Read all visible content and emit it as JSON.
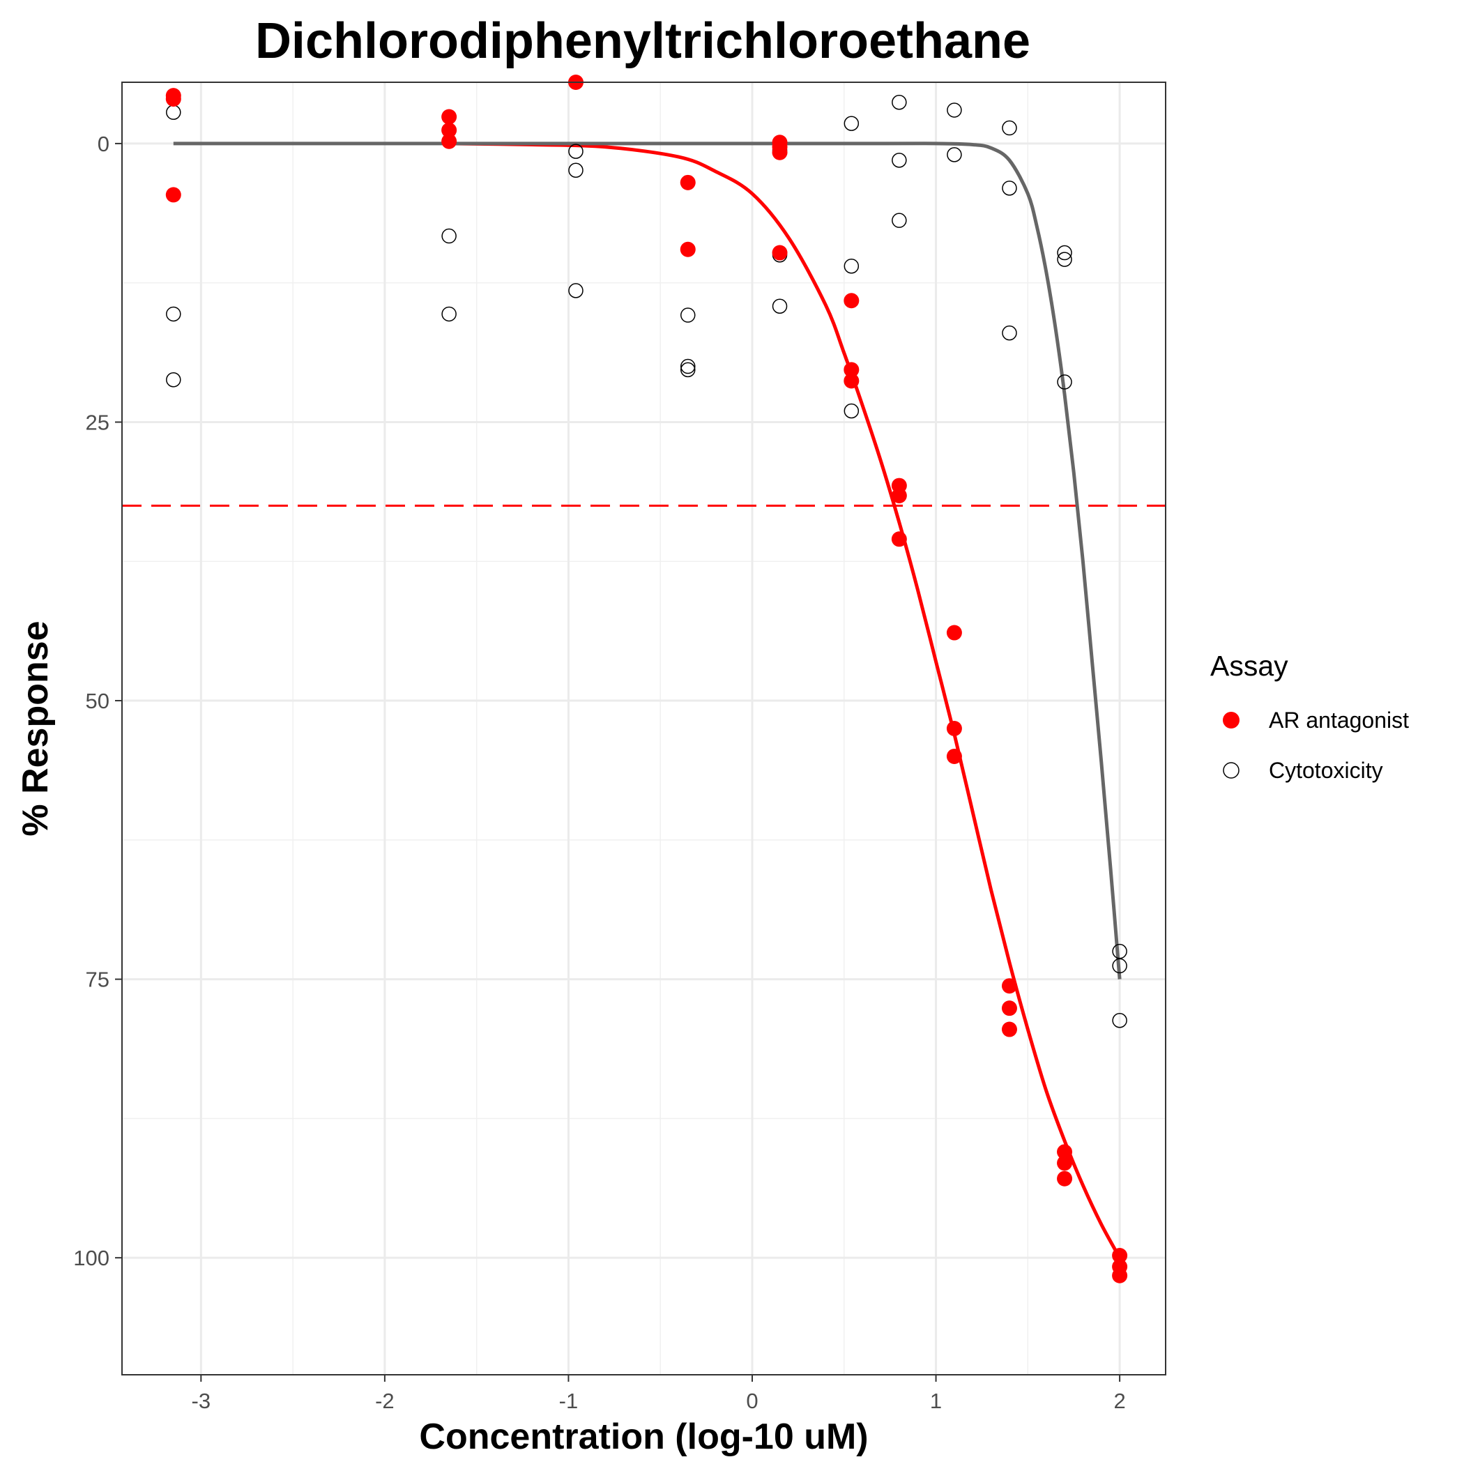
{
  "chart_data": {
    "type": "scatter",
    "title": "Dichlorodiphenyltrichloroethane",
    "xlabel": "Concentration (log-10 uM)",
    "ylabel": "% Response",
    "xlim": [
      -3.43,
      2.25
    ],
    "ylim": [
      110.5,
      -5.5
    ],
    "y_reversed": true,
    "xticks": [
      -3,
      -2,
      -1,
      0,
      1,
      2
    ],
    "xtick_labels": [
      "-3",
      "-2",
      "-1",
      "0",
      "1",
      "2"
    ],
    "yticks": [
      0,
      25,
      50,
      75,
      100
    ],
    "ytick_labels": [
      "0",
      "25",
      "50",
      "75",
      "100"
    ],
    "grid": true,
    "legend": {
      "title": "Assay",
      "placement": "right"
    },
    "threshold_line": {
      "y": 32.5,
      "color": "#ff0000",
      "style": "dashed"
    },
    "series": [
      {
        "name": "AR antagonist",
        "marker": "filled-circle",
        "color": "#ff0000",
        "points": [
          [
            -3.15,
            -4.3
          ],
          [
            -3.15,
            -4.0
          ],
          [
            -3.15,
            4.6
          ],
          [
            -1.65,
            -2.4
          ],
          [
            -1.65,
            -1.2
          ],
          [
            -1.65,
            -0.2
          ],
          [
            -0.96,
            -5.5
          ],
          [
            -0.35,
            3.5
          ],
          [
            -0.35,
            9.5
          ],
          [
            0.15,
            -0.1
          ],
          [
            0.15,
            0.3
          ],
          [
            0.15,
            0.8
          ],
          [
            0.15,
            9.8
          ],
          [
            0.54,
            14.1
          ],
          [
            0.54,
            20.3
          ],
          [
            0.54,
            21.3
          ],
          [
            0.8,
            30.7
          ],
          [
            0.8,
            31.6
          ],
          [
            0.8,
            35.5
          ],
          [
            1.1,
            43.9
          ],
          [
            1.1,
            52.5
          ],
          [
            1.1,
            55.0
          ],
          [
            1.4,
            75.6
          ],
          [
            1.4,
            77.6
          ],
          [
            1.4,
            79.5
          ],
          [
            1.7,
            90.5
          ],
          [
            1.7,
            91.5
          ],
          [
            1.7,
            92.9
          ],
          [
            2.0,
            99.8
          ],
          [
            2.0,
            100.8
          ],
          [
            2.0,
            101.6
          ]
        ],
        "fit": {
          "color": "#ff0000",
          "x": [
            -1.65,
            -1.2,
            -0.8,
            -0.4,
            -0.2,
            0.0,
            0.2,
            0.4,
            0.5,
            0.6,
            0.7,
            0.8,
            0.9,
            1.0,
            1.1,
            1.2,
            1.3,
            1.4,
            1.5,
            1.6,
            1.7,
            1.8,
            1.9,
            2.0
          ],
          "y": [
            0.0,
            0.1,
            0.3,
            1.2,
            2.5,
            4.5,
            8.5,
            14.5,
            18.8,
            23.5,
            28.5,
            34.0,
            40.0,
            46.5,
            53.0,
            60.0,
            67.0,
            73.5,
            79.5,
            85.0,
            89.5,
            93.5,
            97.0,
            100.0
          ]
        }
      },
      {
        "name": "Cytotoxicity",
        "marker": "open-circle",
        "color": "#000000",
        "points": [
          [
            -3.15,
            -2.8
          ],
          [
            -3.15,
            15.3
          ],
          [
            -3.15,
            21.2
          ],
          [
            -1.65,
            8.3
          ],
          [
            -1.65,
            15.3
          ],
          [
            -0.96,
            0.7
          ],
          [
            -0.96,
            2.4
          ],
          [
            -0.96,
            13.2
          ],
          [
            -0.35,
            15.4
          ],
          [
            -0.35,
            20.0
          ],
          [
            -0.35,
            20.3
          ],
          [
            0.15,
            0.6
          ],
          [
            0.15,
            10.0
          ],
          [
            0.15,
            14.6
          ],
          [
            0.54,
            -1.8
          ],
          [
            0.54,
            11.0
          ],
          [
            0.54,
            24.0
          ],
          [
            0.8,
            -3.7
          ],
          [
            0.8,
            1.5
          ],
          [
            0.8,
            6.9
          ],
          [
            1.1,
            -3.0
          ],
          [
            1.1,
            1.0
          ],
          [
            1.4,
            -1.4
          ],
          [
            1.4,
            4.0
          ],
          [
            1.4,
            17.0
          ],
          [
            1.7,
            9.8
          ],
          [
            1.7,
            10.4
          ],
          [
            1.7,
            21.4
          ],
          [
            2.0,
            72.5
          ],
          [
            2.0,
            73.8
          ],
          [
            2.0,
            78.7
          ]
        ],
        "fit": {
          "color": "#666666",
          "x": [
            -3.15,
            -1.0,
            0.5,
            1.0,
            1.2,
            1.3,
            1.4,
            1.5,
            1.55,
            1.6,
            1.65,
            1.7,
            1.75,
            1.8,
            1.85,
            1.9,
            1.95,
            2.0
          ],
          "y": [
            0.0,
            0.0,
            0.0,
            0.0,
            0.1,
            0.4,
            1.5,
            4.5,
            7.5,
            11.5,
            16.5,
            22.5,
            29.5,
            37.5,
            46.5,
            55.5,
            65.0,
            75.0
          ]
        }
      }
    ]
  }
}
